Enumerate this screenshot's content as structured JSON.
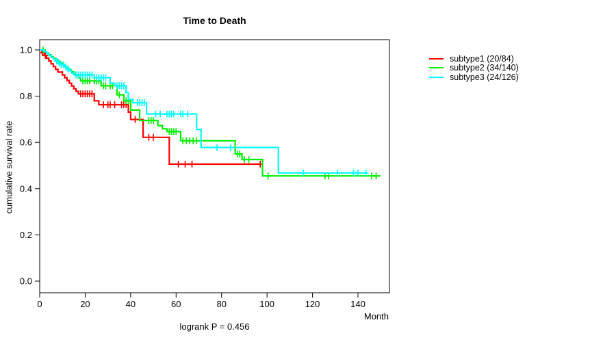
{
  "figure": {
    "title": "Time to Death",
    "caption": "logrank P = 0.456"
  },
  "axes": {
    "x": {
      "label": "Month",
      "tick_labels": [
        "0",
        "20",
        "40",
        "60",
        "80",
        "100",
        "120",
        "140"
      ],
      "tick_values": [
        0,
        20,
        40,
        60,
        80,
        100,
        120,
        140
      ]
    },
    "y": {
      "label": "cumulative survival rate",
      "tick_labels": [
        "0.0",
        "0.2",
        "0.4",
        "0.6",
        "0.8",
        "1.0"
      ],
      "tick_values": [
        0.0,
        0.2,
        0.4,
        0.6,
        0.8,
        1.0
      ]
    }
  },
  "legend": {
    "items": [
      {
        "label": "subtype1 (20/84)",
        "color": "#FF0000"
      },
      {
        "label": "subtype2 (34/140)",
        "color": "#00EE00"
      },
      {
        "label": "subtype3 (24/126)",
        "color": "#00FFFF"
      }
    ]
  },
  "chart_data": {
    "type": "line",
    "variant": "kaplan-meier-step",
    "title": "Time to Death",
    "xlabel": "Month",
    "ylabel": "cumulative survival rate",
    "annotation": "logrank P = 0.456",
    "xlim": [
      0,
      154
    ],
    "ylim": [
      0,
      1.04
    ],
    "grid": false,
    "legend_position": "right-outside",
    "series": [
      {
        "name": "subtype1 (20/84)",
        "color": "#FF0000",
        "end_month": 97,
        "steps": [
          [
            0,
            1.0
          ],
          [
            1,
            0.988
          ],
          [
            2,
            0.976
          ],
          [
            3,
            0.964
          ],
          [
            4,
            0.952
          ],
          [
            5,
            0.94
          ],
          [
            6,
            0.928
          ],
          [
            7,
            0.916
          ],
          [
            8,
            0.904
          ],
          [
            10,
            0.892
          ],
          [
            11,
            0.88
          ],
          [
            12,
            0.868
          ],
          [
            13,
            0.856
          ],
          [
            14,
            0.844
          ],
          [
            15,
            0.832
          ],
          [
            16,
            0.821
          ],
          [
            17,
            0.81
          ],
          [
            24,
            0.78
          ],
          [
            26,
            0.763
          ],
          [
            39,
            0.731
          ],
          [
            40,
            0.699
          ],
          [
            45.5,
            0.622
          ],
          [
            57,
            0.506
          ]
        ],
        "censors": [
          [
            1.2,
            0.988
          ],
          [
            2.5,
            0.976
          ],
          [
            18,
            0.81
          ],
          [
            19,
            0.81
          ],
          [
            20,
            0.81
          ],
          [
            21,
            0.81
          ],
          [
            22,
            0.81
          ],
          [
            23,
            0.81
          ],
          [
            28,
            0.763
          ],
          [
            30,
            0.763
          ],
          [
            31,
            0.763
          ],
          [
            33,
            0.763
          ],
          [
            36,
            0.763
          ],
          [
            37,
            0.763
          ],
          [
            38,
            0.763
          ],
          [
            42,
            0.699
          ],
          [
            48,
            0.622
          ],
          [
            50,
            0.622
          ],
          [
            61,
            0.506
          ],
          [
            64,
            0.506
          ],
          [
            67,
            0.506
          ],
          [
            97,
            0.506
          ]
        ]
      },
      {
        "name": "subtype2 (34/140)",
        "color": "#00EE00",
        "end_month": 150,
        "steps": [
          [
            0,
            1.0
          ],
          [
            2,
            0.993
          ],
          [
            3,
            0.986
          ],
          [
            4,
            0.979
          ],
          [
            5,
            0.971
          ],
          [
            6,
            0.964
          ],
          [
            7,
            0.957
          ],
          [
            8,
            0.95
          ],
          [
            9,
            0.943
          ],
          [
            10,
            0.935
          ],
          [
            11,
            0.928
          ],
          [
            12,
            0.92
          ],
          [
            13,
            0.913
          ],
          [
            14,
            0.905
          ],
          [
            15,
            0.898
          ],
          [
            16,
            0.89
          ],
          [
            17,
            0.88
          ],
          [
            18,
            0.866
          ],
          [
            27,
            0.845
          ],
          [
            34,
            0.806
          ],
          [
            37,
            0.78
          ],
          [
            40,
            0.74
          ],
          [
            44,
            0.695
          ],
          [
            52,
            0.673
          ],
          [
            54,
            0.659
          ],
          [
            56,
            0.647
          ],
          [
            62,
            0.607
          ],
          [
            86,
            0.55
          ],
          [
            89,
            0.526
          ],
          [
            98,
            0.455
          ]
        ],
        "censors": [
          [
            1.5,
            1.0
          ],
          [
            19,
            0.866
          ],
          [
            20,
            0.866
          ],
          [
            21,
            0.866
          ],
          [
            22,
            0.866
          ],
          [
            24,
            0.866
          ],
          [
            25,
            0.866
          ],
          [
            26,
            0.866
          ],
          [
            28,
            0.845
          ],
          [
            29,
            0.845
          ],
          [
            31,
            0.845
          ],
          [
            32,
            0.845
          ],
          [
            35,
            0.806
          ],
          [
            38,
            0.78
          ],
          [
            39,
            0.78
          ],
          [
            48,
            0.695
          ],
          [
            49,
            0.695
          ],
          [
            50,
            0.695
          ],
          [
            57,
            0.647
          ],
          [
            58,
            0.647
          ],
          [
            59,
            0.647
          ],
          [
            60,
            0.647
          ],
          [
            63,
            0.607
          ],
          [
            64.5,
            0.607
          ],
          [
            66,
            0.607
          ],
          [
            67.5,
            0.607
          ],
          [
            69,
            0.607
          ],
          [
            87,
            0.55
          ],
          [
            88,
            0.55
          ],
          [
            90,
            0.526
          ],
          [
            92,
            0.526
          ],
          [
            100.5,
            0.455
          ],
          [
            125.5,
            0.455
          ],
          [
            127,
            0.455
          ],
          [
            146,
            0.455
          ],
          [
            148,
            0.455
          ]
        ]
      },
      {
        "name": "subtype3 (24/126)",
        "color": "#00FFFF",
        "end_month": 144,
        "steps": [
          [
            0,
            1.0
          ],
          [
            2,
            0.992
          ],
          [
            3,
            0.984
          ],
          [
            4,
            0.976
          ],
          [
            5,
            0.968
          ],
          [
            6,
            0.96
          ],
          [
            7,
            0.952
          ],
          [
            8,
            0.944
          ],
          [
            9,
            0.936
          ],
          [
            11,
            0.926
          ],
          [
            12,
            0.918
          ],
          [
            13,
            0.91
          ],
          [
            14,
            0.9
          ],
          [
            15,
            0.892
          ],
          [
            24,
            0.88
          ],
          [
            31,
            0.856
          ],
          [
            33,
            0.845
          ],
          [
            38,
            0.815
          ],
          [
            39,
            0.786
          ],
          [
            41,
            0.772
          ],
          [
            47,
            0.723
          ],
          [
            69,
            0.656
          ],
          [
            71,
            0.578
          ],
          [
            105,
            0.468
          ]
        ],
        "censors": [
          [
            7.5,
            0.952
          ],
          [
            8.5,
            0.944
          ],
          [
            9.5,
            0.936
          ],
          [
            10.5,
            0.936
          ],
          [
            11.5,
            0.926
          ],
          [
            12.5,
            0.918
          ],
          [
            16,
            0.892
          ],
          [
            17,
            0.892
          ],
          [
            18,
            0.892
          ],
          [
            19,
            0.892
          ],
          [
            20,
            0.892
          ],
          [
            21,
            0.892
          ],
          [
            22,
            0.892
          ],
          [
            23,
            0.892
          ],
          [
            25,
            0.88
          ],
          [
            26,
            0.88
          ],
          [
            27,
            0.88
          ],
          [
            28,
            0.88
          ],
          [
            29,
            0.88
          ],
          [
            34,
            0.845
          ],
          [
            35,
            0.845
          ],
          [
            36,
            0.845
          ],
          [
            37,
            0.845
          ],
          [
            43,
            0.772
          ],
          [
            44,
            0.772
          ],
          [
            45,
            0.772
          ],
          [
            46,
            0.772
          ],
          [
            51,
            0.723
          ],
          [
            53,
            0.723
          ],
          [
            56,
            0.723
          ],
          [
            57,
            0.723
          ],
          [
            58,
            0.723
          ],
          [
            59,
            0.723
          ],
          [
            62,
            0.723
          ],
          [
            63,
            0.723
          ],
          [
            65,
            0.723
          ],
          [
            78,
            0.578
          ],
          [
            84,
            0.578
          ],
          [
            116,
            0.468
          ],
          [
            131,
            0.468
          ],
          [
            138,
            0.468
          ],
          [
            140,
            0.468
          ],
          [
            143.5,
            0.468
          ]
        ]
      }
    ]
  }
}
